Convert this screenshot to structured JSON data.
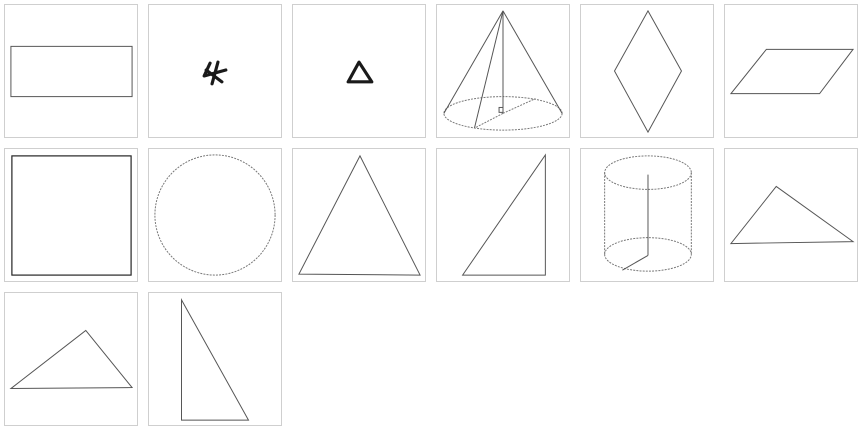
{
  "grid": {
    "tiles": [
      {
        "shape": "rectangle-icon"
      },
      {
        "shape": "scribble-star-icon"
      },
      {
        "shape": "hand-drawn-triangle-icon"
      },
      {
        "shape": "cone-icon"
      },
      {
        "shape": "rhombus-icon"
      },
      {
        "shape": "parallelogram-icon"
      },
      {
        "shape": "square-icon"
      },
      {
        "shape": "circle-icon"
      },
      {
        "shape": "isosceles-triangle-icon"
      },
      {
        "shape": "right-triangle-icon"
      },
      {
        "shape": "cylinder-icon"
      },
      {
        "shape": "obtuse-triangle-icon"
      },
      {
        "shape": "scalene-triangle-icon"
      },
      {
        "shape": "tall-right-triangle-icon"
      }
    ],
    "colors": {
      "border": "#cfcfcf",
      "line": "#555555"
    }
  }
}
